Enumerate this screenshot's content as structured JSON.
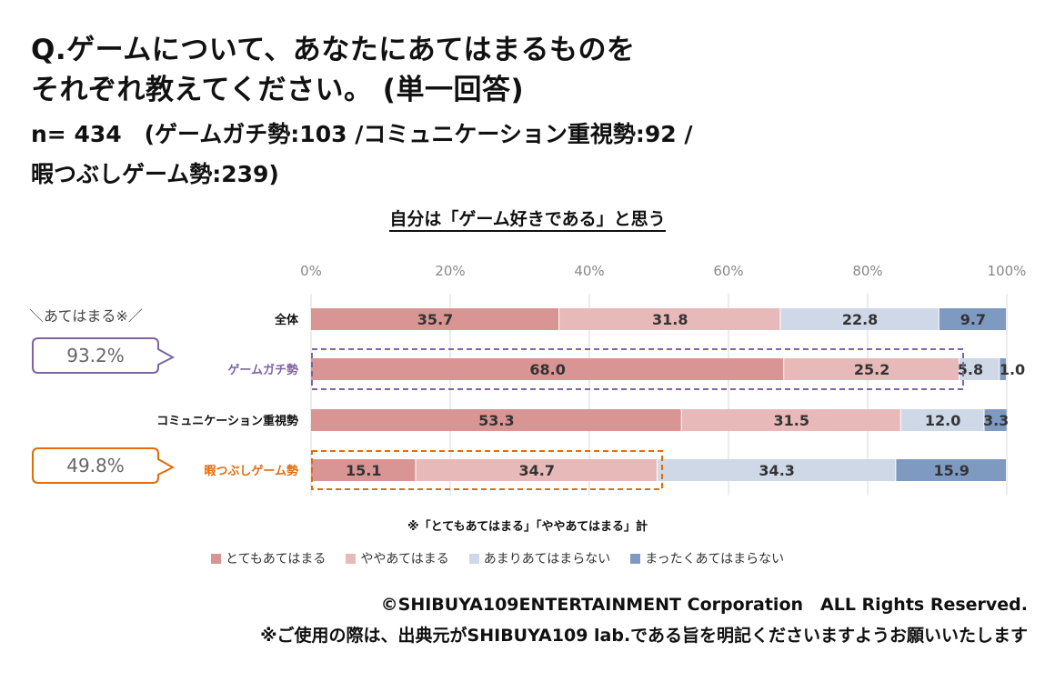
{
  "header": {
    "question_line1": "Q.ゲームについて、あなたにあてはまるものを",
    "question_line2": "それぞれ教えてください。 (単一回答)",
    "n_line1": "n= 434　(ゲームガチ勢:103 /コミュニケーション重視勢:92 /",
    "n_line2": "暇つぶしゲーム勢:239)"
  },
  "annotation": {
    "applies_label": "＼あてはまる※／",
    "note": "※「とてもあてはまる」「ややあてはまる」計"
  },
  "colors": {
    "very": "#d99594",
    "somewhat": "#e8b9b9",
    "not_much": "#cfd8e7",
    "not_at_all": "#7f9ac1",
    "purple": "#8064a2",
    "orange": "#e36c09",
    "axis_text": "#888888"
  },
  "chart_data": {
    "type": "bar",
    "orientation": "horizontal",
    "stacked": true,
    "title": "自分は「ゲーム好きである」と思う",
    "xlim": [
      0,
      100
    ],
    "x_ticks": [
      "0%",
      "20%",
      "40%",
      "60%",
      "80%",
      "100%"
    ],
    "grid": true,
    "legend_position": "bottom",
    "categories": [
      "全体",
      "ゲームガチ勢",
      "コミュニケーション重視勢",
      "暇つぶしゲーム勢"
    ],
    "series": [
      {
        "name": "とてもあてはまる",
        "values": [
          35.7,
          68.0,
          53.3,
          15.1
        ]
      },
      {
        "name": "ややあてはまる",
        "values": [
          31.8,
          25.2,
          31.5,
          34.7
        ]
      },
      {
        "name": "あまりあてはまらない",
        "values": [
          22.8,
          5.8,
          12.0,
          34.3
        ]
      },
      {
        "name": "まったくあてはまらない",
        "values": [
          9.7,
          1.0,
          3.3,
          15.9
        ]
      }
    ],
    "callouts": [
      {
        "category": "ゲームガチ勢",
        "value": "93.2%"
      },
      {
        "category": "暇つぶしゲーム勢",
        "value": "49.8%"
      }
    ]
  },
  "footer": {
    "copyright": "©SHIBUYA109ENTERTAINMENT Corporation　ALL Rights Reserved.",
    "usage": "※ご使用の際は、出典元がSHIBUYA109 lab.である旨を明記くださいますようお願いいたします"
  }
}
